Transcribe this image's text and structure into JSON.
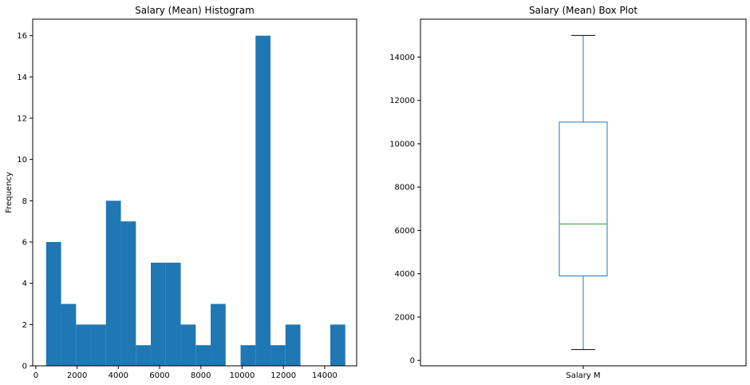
{
  "chart_data": [
    {
      "type": "bar",
      "title": "Salary (Mean) Histogram",
      "xlabel": "",
      "ylabel": "Frequency",
      "xlim": [
        -150,
        15550
      ],
      "ylim": [
        0,
        16.8
      ],
      "bins": [
        {
          "x0": 500,
          "x1": 1225,
          "count": 6
        },
        {
          "x0": 1225,
          "x1": 1950,
          "count": 3
        },
        {
          "x0": 1950,
          "x1": 2675,
          "count": 2
        },
        {
          "x0": 2675,
          "x1": 3400,
          "count": 2
        },
        {
          "x0": 3400,
          "x1": 4125,
          "count": 8
        },
        {
          "x0": 4125,
          "x1": 4850,
          "count": 7
        },
        {
          "x0": 4850,
          "x1": 5575,
          "count": 1
        },
        {
          "x0": 5575,
          "x1": 6300,
          "count": 5
        },
        {
          "x0": 6300,
          "x1": 7025,
          "count": 5
        },
        {
          "x0": 7025,
          "x1": 7750,
          "count": 2
        },
        {
          "x0": 7750,
          "x1": 8475,
          "count": 1
        },
        {
          "x0": 8475,
          "x1": 9200,
          "count": 3
        },
        {
          "x0": 9200,
          "x1": 9925,
          "count": 0
        },
        {
          "x0": 9925,
          "x1": 10650,
          "count": 1
        },
        {
          "x0": 10650,
          "x1": 11375,
          "count": 16
        },
        {
          "x0": 11375,
          "x1": 12100,
          "count": 1
        },
        {
          "x0": 12100,
          "x1": 12825,
          "count": 2
        },
        {
          "x0": 12825,
          "x1": 13550,
          "count": 0
        },
        {
          "x0": 13550,
          "x1": 14275,
          "count": 0
        },
        {
          "x0": 14275,
          "x1": 15000,
          "count": 2
        }
      ],
      "x_ticks": [
        0,
        2000,
        4000,
        6000,
        8000,
        10000,
        12000,
        14000
      ],
      "y_ticks": [
        0,
        2,
        4,
        6,
        8,
        10,
        12,
        14,
        16
      ],
      "bar_color": "#1f77b4"
    },
    {
      "type": "box",
      "title": "Salary (Mean) Box Plot",
      "category": "Salary M",
      "ylim": [
        -250,
        15750
      ],
      "stats": {
        "min": 500,
        "q1": 3900,
        "median": 6300,
        "q3": 11000,
        "max": 15000
      },
      "y_ticks": [
        0,
        2000,
        4000,
        6000,
        8000,
        10000,
        12000,
        14000
      ],
      "box_color": "#1f77b4",
      "median_color": "#2ca02c"
    }
  ]
}
